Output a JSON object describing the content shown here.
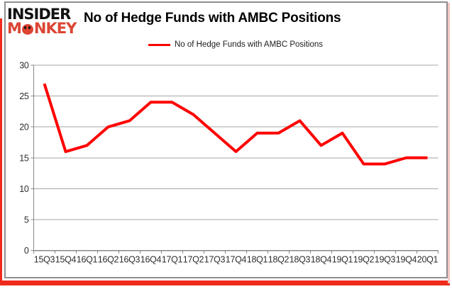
{
  "logo": {
    "line1": "INSIDER",
    "monkey_m": "M",
    "monkey_nkey": "NKEY"
  },
  "header": {
    "title": "No of Hedge Funds with AMBC Positions"
  },
  "legend": {
    "label": "No of Hedge Funds with AMBC Positions"
  },
  "chart_data": {
    "type": "line",
    "title": "No of Hedge Funds with AMBC Positions",
    "categories": [
      "15Q3",
      "15Q4",
      "16Q1",
      "16Q2",
      "16Q3",
      "16Q4",
      "17Q1",
      "17Q2",
      "17Q3",
      "17Q4",
      "18Q1",
      "18Q2",
      "18Q3",
      "18Q4",
      "19Q1",
      "19Q2",
      "19Q3",
      "19Q4",
      "20Q1"
    ],
    "series": [
      {
        "name": "No of Hedge Funds with AMBC Positions",
        "values": [
          27,
          16,
          17,
          20,
          21,
          24,
          24,
          22,
          19,
          16,
          19,
          19,
          21,
          17,
          19,
          14,
          14,
          15,
          15
        ]
      }
    ],
    "xlabel": "",
    "ylabel": "",
    "ylim": [
      0,
      30
    ],
    "yticks": [
      0,
      5,
      10,
      15,
      20,
      25,
      30
    ],
    "grid": "horizontal-only",
    "legend_position": "top-center"
  },
  "colors": {
    "line_red": "#ff0000",
    "logo_red": "#dc4434",
    "frame_red": "#ee2b1c",
    "frame_pink": "#f2c6c2",
    "grid_gray": "#a6a6a6",
    "axis_gray": "#898989",
    "tick_text": "#2e2e2e"
  }
}
